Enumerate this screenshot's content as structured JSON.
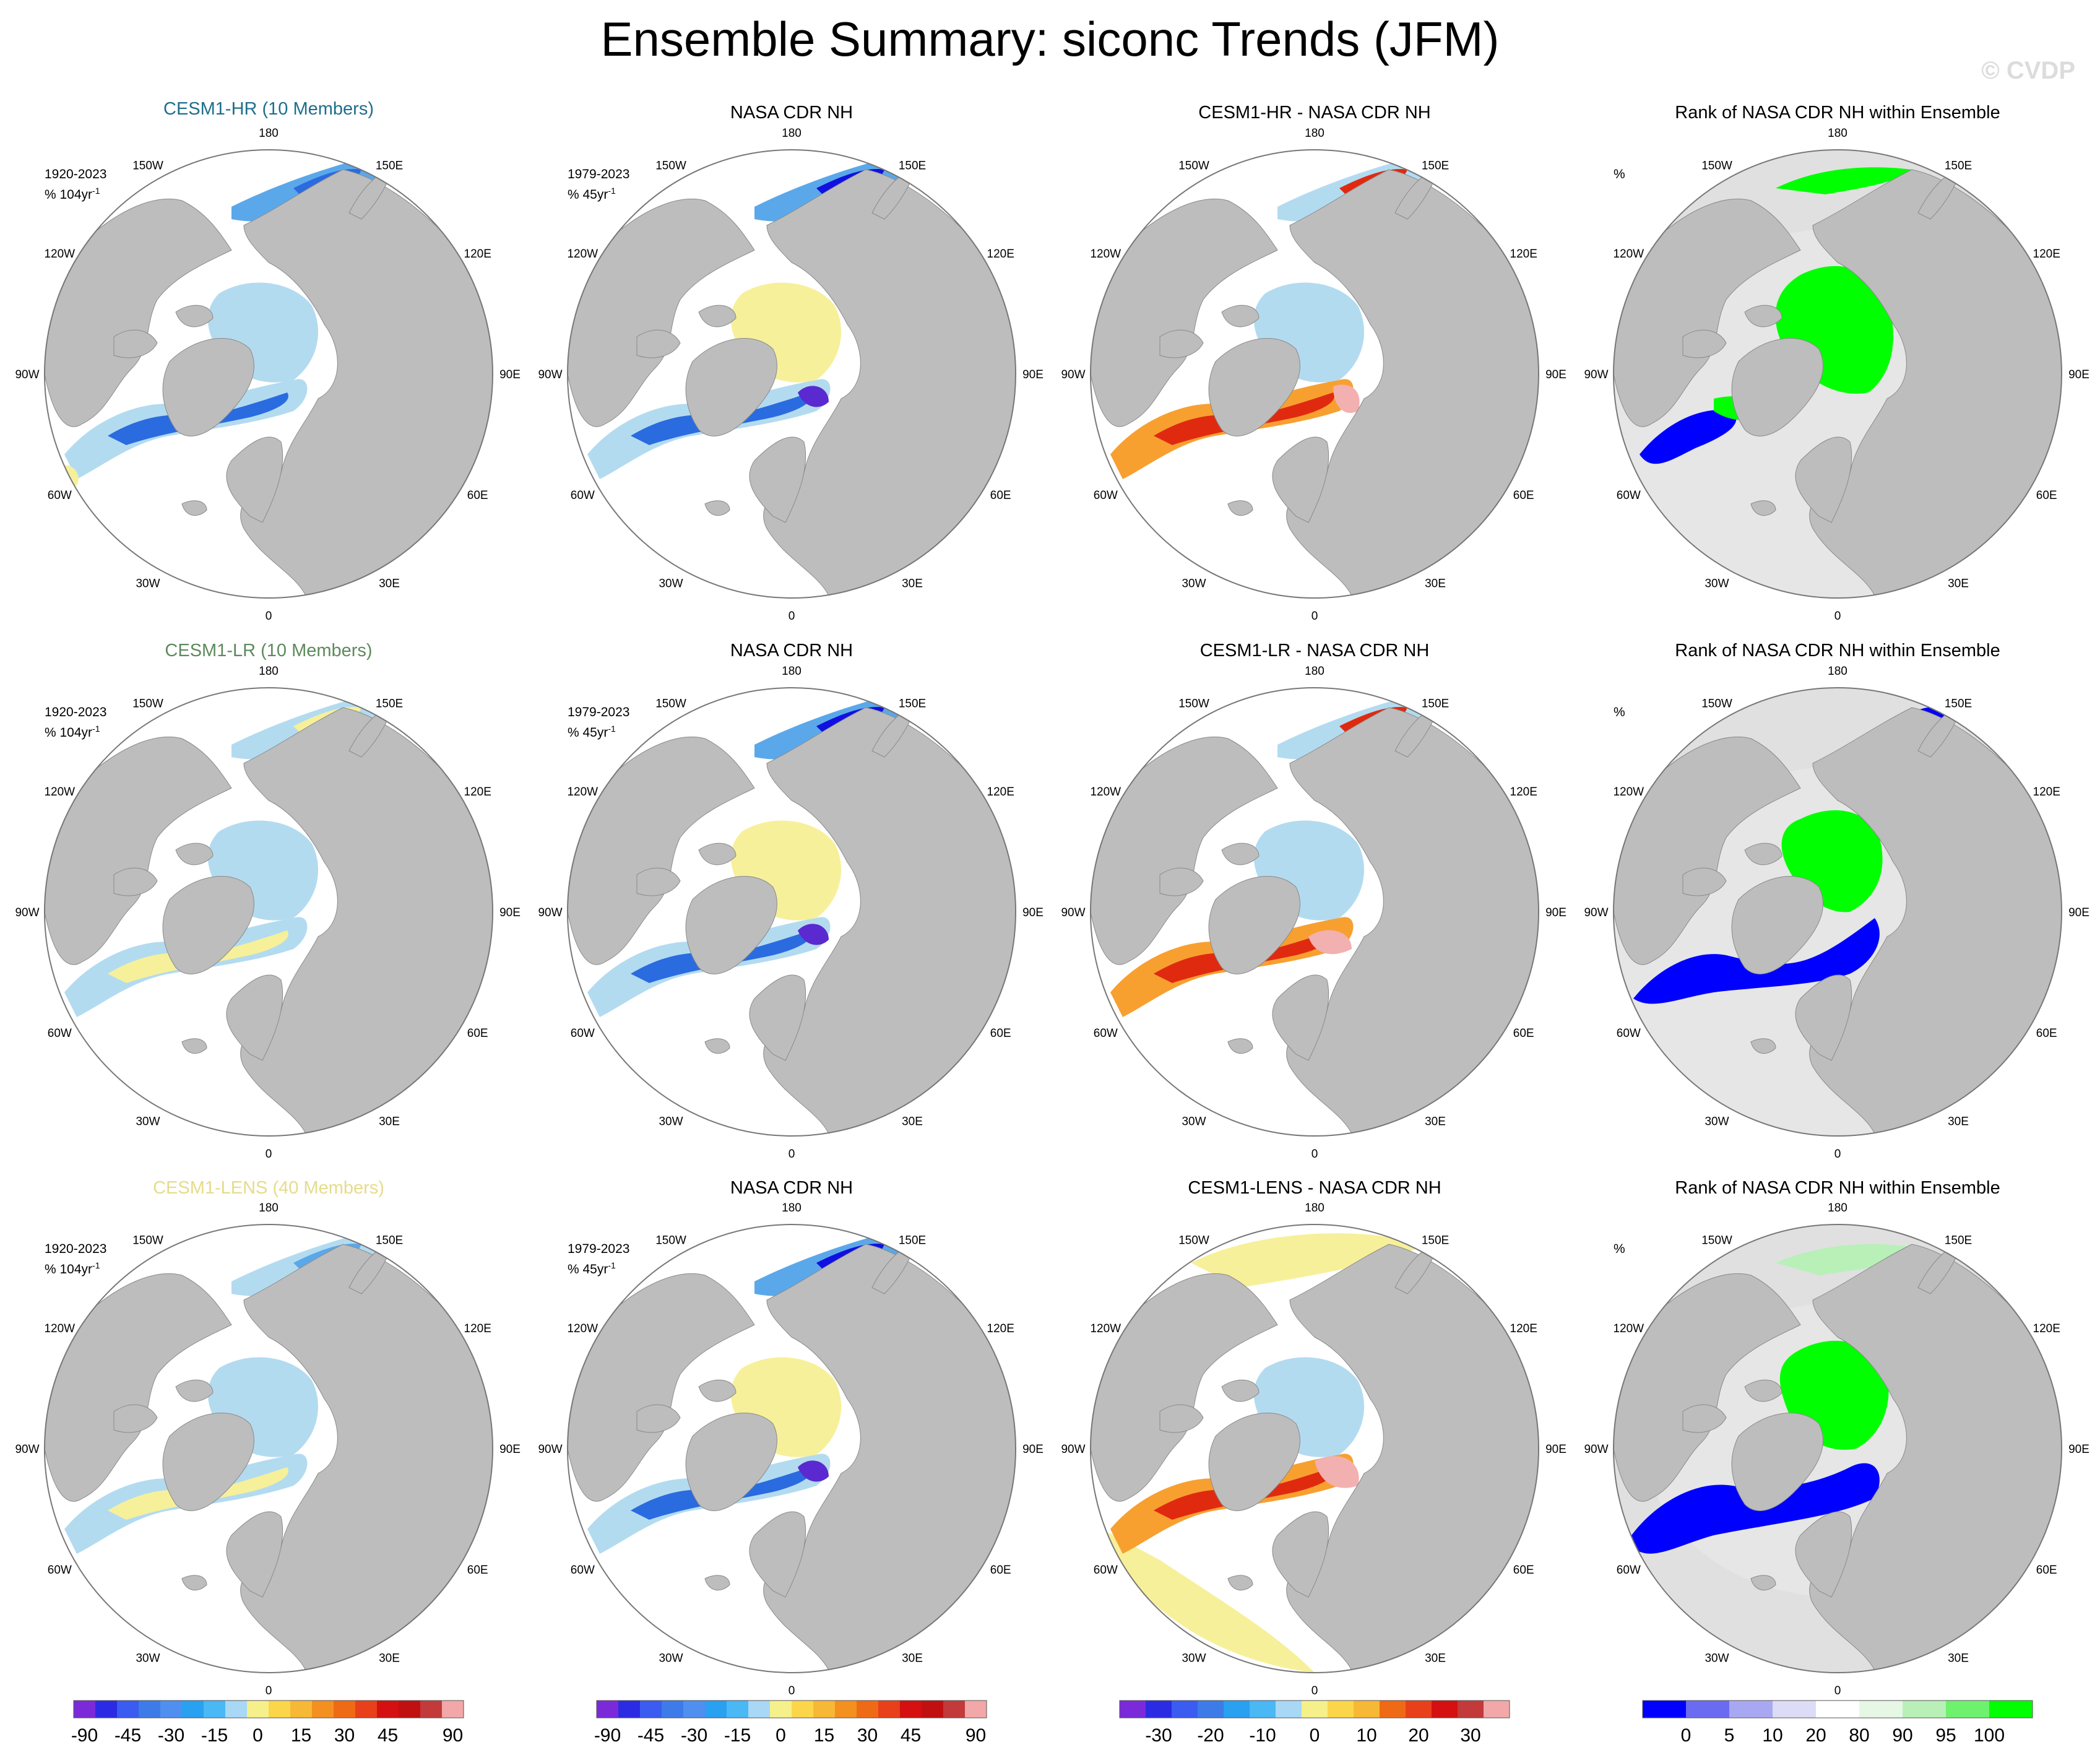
{
  "title": "Ensemble Summary: siconc Trends (JFM)",
  "watermark": "© CVDP",
  "lon_labels": [
    "180",
    "150E",
    "120E",
    "90E",
    "60E",
    "30E",
    "0",
    "30W",
    "60W",
    "90W",
    "120W",
    "150W"
  ],
  "rows": [
    {
      "model": {
        "title": "CESM1-HR (10 Members)",
        "title_color": "#1f6e8c",
        "period": "1920-2023",
        "units": "% 104yr",
        "sup": "-1",
        "pattern": "model_hr"
      },
      "obs": {
        "title": "NASA CDR NH",
        "period": "1979-2023",
        "units": "% 45yr",
        "sup": "-1",
        "pattern": "obs"
      },
      "diff": {
        "title": "CESM1-HR - NASA CDR NH",
        "pattern": "diff_hr"
      },
      "rank": {
        "title": "Rank of NASA CDR NH within Ensemble",
        "units": "%",
        "pattern": "rank_hr"
      }
    },
    {
      "model": {
        "title": "CESM1-LR (10 Members)",
        "title_color": "#5d8a5d",
        "period": "1920-2023",
        "units": "% 104yr",
        "sup": "-1",
        "pattern": "model_lr"
      },
      "obs": {
        "title": "NASA CDR NH",
        "period": "1979-2023",
        "units": "% 45yr",
        "sup": "-1",
        "pattern": "obs"
      },
      "diff": {
        "title": "CESM1-LR - NASA CDR NH",
        "pattern": "diff_lr"
      },
      "rank": {
        "title": "Rank of NASA CDR NH within Ensemble",
        "units": "%",
        "pattern": "rank_lr"
      }
    },
    {
      "model": {
        "title": "CESM1-LENS (40 Members)",
        "title_color": "#e6dc8a",
        "period": "1920-2023",
        "units": "% 104yr",
        "sup": "-1",
        "pattern": "model_lens"
      },
      "obs": {
        "title": "NASA CDR NH",
        "period": "1979-2023",
        "units": "% 45yr",
        "sup": "-1",
        "pattern": "obs"
      },
      "diff": {
        "title": "CESM1-LENS - NASA CDR NH",
        "pattern": "diff_lens"
      },
      "rank": {
        "title": "Rank of NASA CDR NH within Ensemble",
        "units": "%",
        "pattern": "rank_lens"
      }
    }
  ],
  "colorbars": [
    {
      "colors": [
        "#7b2ad9",
        "#2b2be3",
        "#3a5cf0",
        "#3d7be8",
        "#4f8ff0",
        "#2aa0f0",
        "#49b8f5",
        "#a8d8f5",
        "#f5f08a",
        "#fbd64a",
        "#f7b836",
        "#f39020",
        "#ef6a14",
        "#e8401a",
        "#d41010",
        "#c11010",
        "#c23a3a",
        "#f2a8a8"
      ],
      "labels": [
        "-90",
        "-45",
        "-30",
        "-15",
        "0",
        "15",
        "30",
        "45",
        "90"
      ]
    },
    {
      "colors": [
        "#7b2ad9",
        "#2b2be3",
        "#3a5cf0",
        "#3d7be8",
        "#4f8ff0",
        "#2aa0f0",
        "#49b8f5",
        "#a8d8f5",
        "#f5f08a",
        "#fbd64a",
        "#f7b836",
        "#f39020",
        "#ef6a14",
        "#e8401a",
        "#d41010",
        "#c11010",
        "#c23a3a",
        "#f2a8a8"
      ],
      "labels": [
        "-90",
        "-45",
        "-30",
        "-15",
        "0",
        "15",
        "30",
        "45",
        "90"
      ]
    },
    {
      "colors": [
        "#7b2ad9",
        "#2b2be3",
        "#3a5cf0",
        "#3d7be8",
        "#2aa0f0",
        "#49b8f5",
        "#a8d8f5",
        "#f5f08a",
        "#fbd64a",
        "#f7b836",
        "#ef6a14",
        "#e8401a",
        "#d41010",
        "#c23a3a",
        "#f2a8a8"
      ],
      "labels": [
        "-30",
        "-20",
        "-10",
        "0",
        "10",
        "20",
        "30"
      ]
    },
    {
      "colors": [
        "#0000ff",
        "#6b6bf2",
        "#a8a8f2",
        "#dcdcf7",
        "#ffffff",
        "#e6f7e6",
        "#b8f0b8",
        "#6ef26e",
        "#00ff00"
      ],
      "labels": [
        "0",
        "5",
        "10",
        "20",
        "80",
        "90",
        "95",
        "100"
      ]
    }
  ]
}
